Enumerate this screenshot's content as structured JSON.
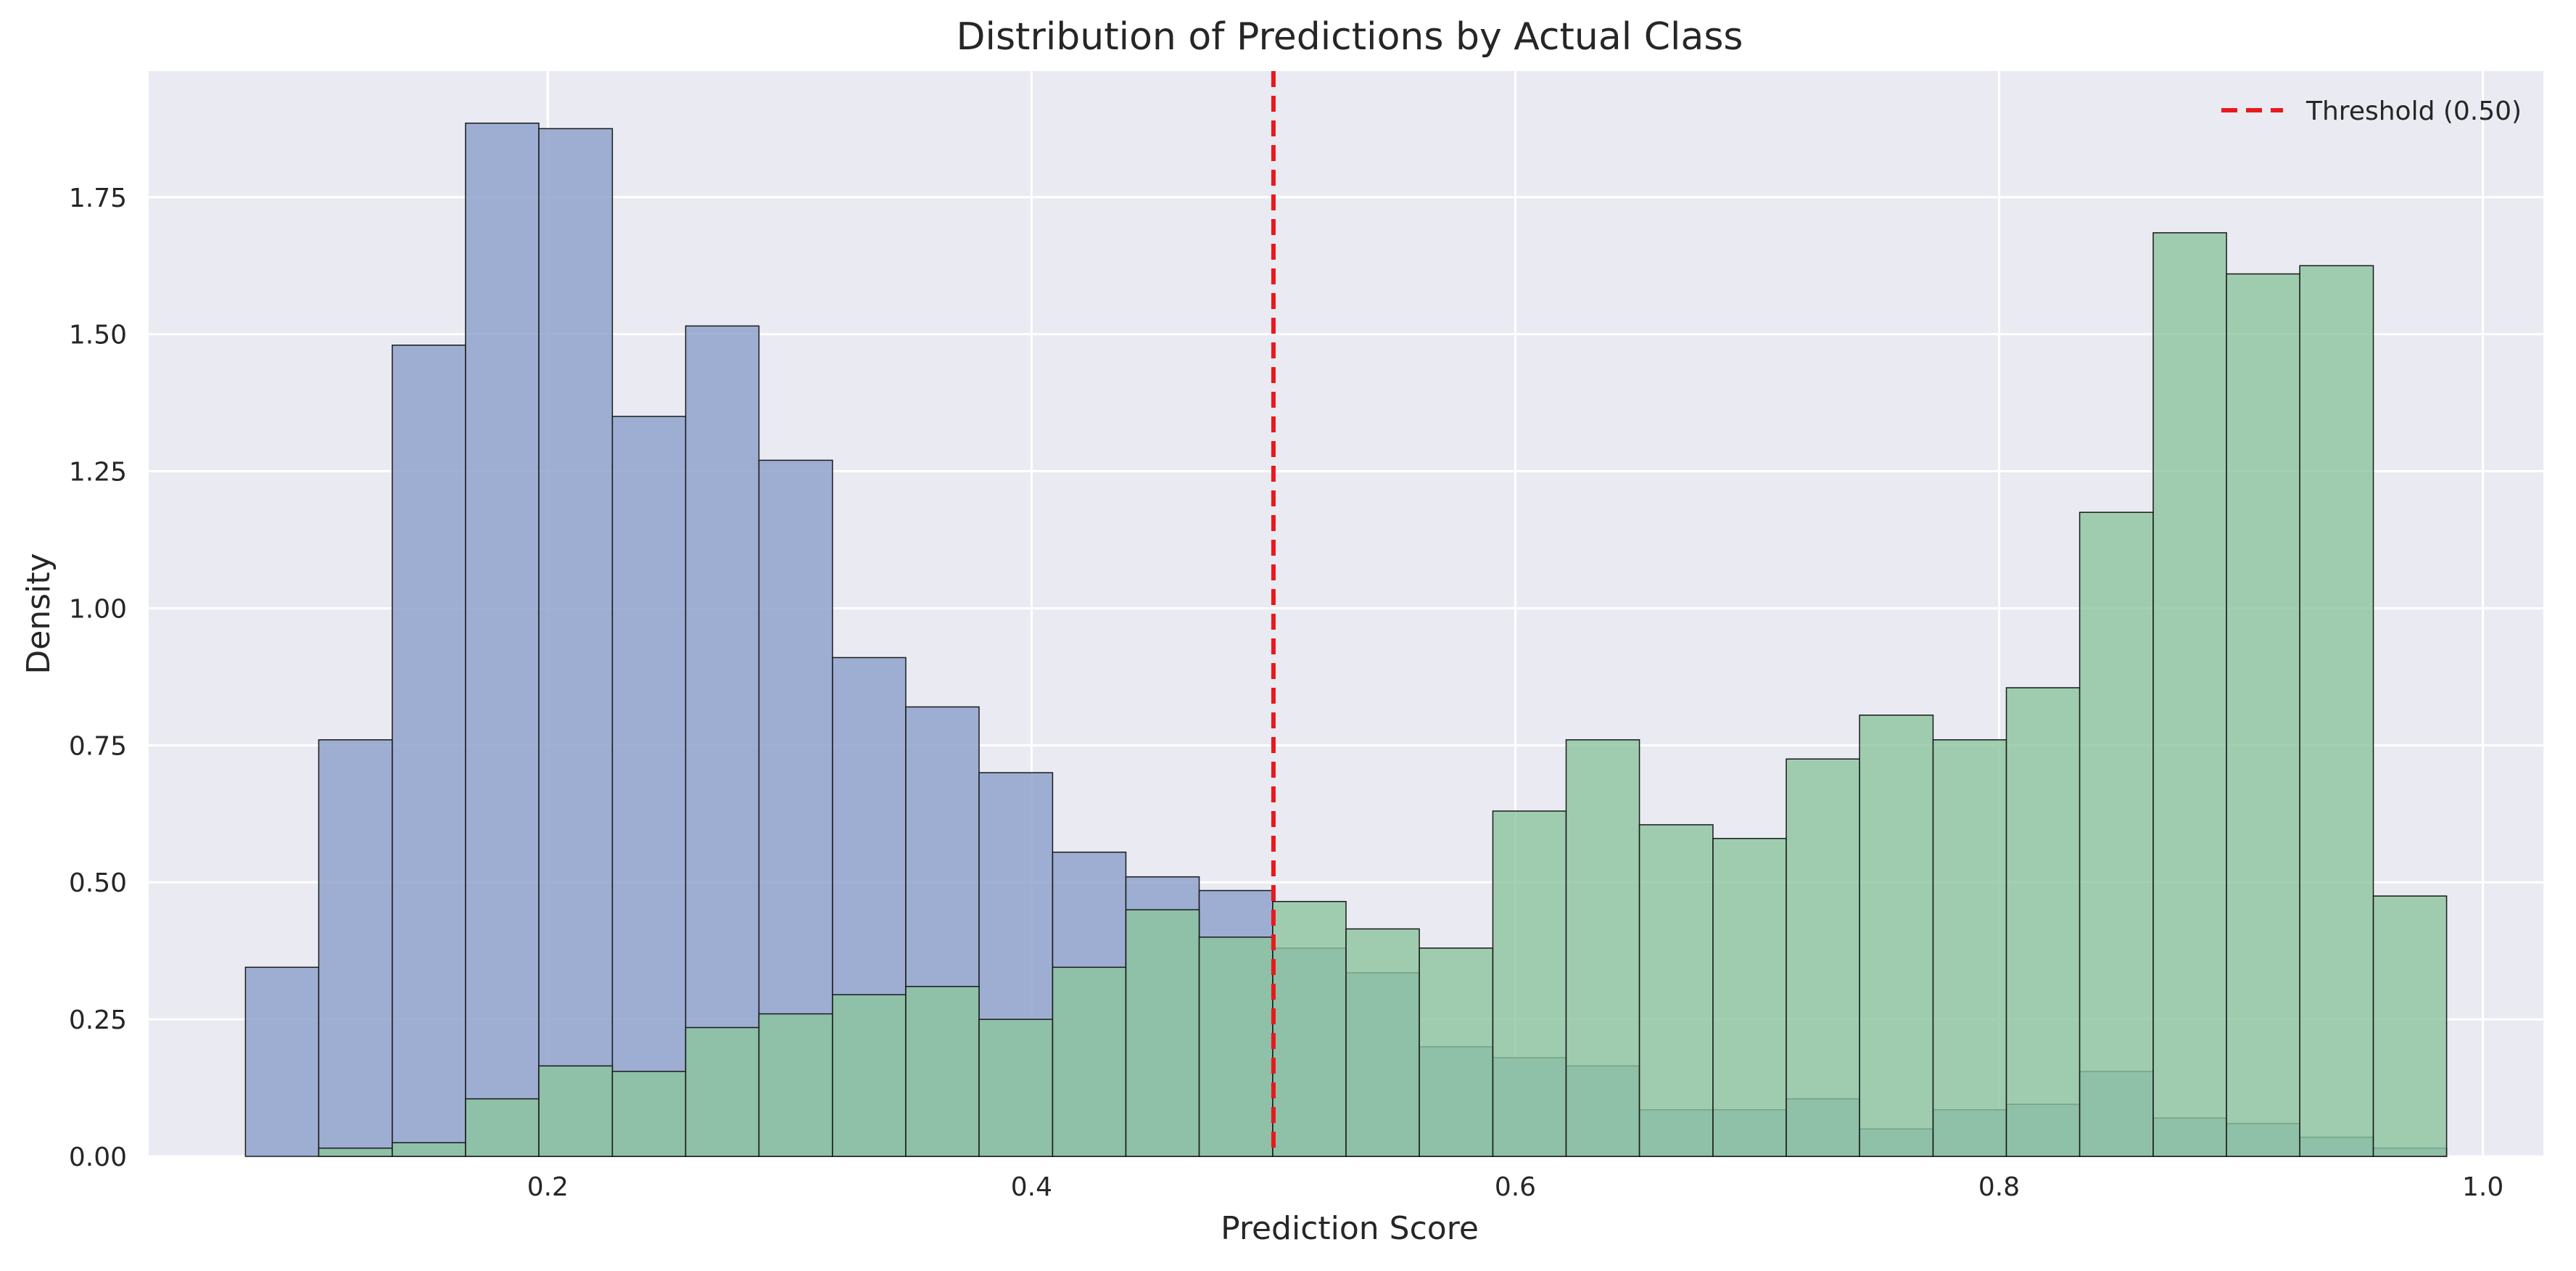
{
  "chart_data": {
    "type": "bar",
    "subtype": "overlapping-histogram",
    "title": "Distribution of Predictions by Actual Class",
    "xlabel": "Prediction Score",
    "ylabel": "Density",
    "xlim": [
      0.035,
      1.025
    ],
    "ylim": [
      0,
      1.98
    ],
    "xticks": [
      0.2,
      0.4,
      0.6,
      0.8,
      1.0
    ],
    "xtick_labels": [
      "0.2",
      "0.4",
      "0.6",
      "0.8",
      "1.0"
    ],
    "yticks": [
      0,
      0.25,
      0.5,
      0.75,
      1.0,
      1.25,
      1.5,
      1.75
    ],
    "ytick_labels": [
      "0.00",
      "0.25",
      "0.50",
      "0.75",
      "1.00",
      "1.25",
      "1.50",
      "1.75"
    ],
    "grid": true,
    "legend_position": "top-right",
    "bin_edges": [
      0.075,
      0.1053,
      0.1357,
      0.166,
      0.1963,
      0.2267,
      0.257,
      0.2873,
      0.3177,
      0.348,
      0.3783,
      0.4087,
      0.439,
      0.4693,
      0.4997,
      0.53,
      0.5603,
      0.5907,
      0.621,
      0.6513,
      0.6817,
      0.712,
      0.7423,
      0.7727,
      0.803,
      0.8333,
      0.8637,
      0.894,
      0.9243,
      0.9547,
      0.985
    ],
    "series": [
      {
        "color": "#8fa3cc",
        "alpha": 0.85,
        "values": [
          0.345,
          0.76,
          1.48,
          1.885,
          1.875,
          1.35,
          1.515,
          1.27,
          0.91,
          0.82,
          0.7,
          0.555,
          0.51,
          0.485,
          0.38,
          0.335,
          0.2,
          0.18,
          0.165,
          0.085,
          0.085,
          0.105,
          0.05,
          0.085,
          0.095,
          0.155,
          0.07,
          0.06,
          0.035,
          0.015
        ]
      },
      {
        "color": "#8cc49e",
        "alpha": 0.8,
        "values": [
          0.0,
          0.015,
          0.025,
          0.105,
          0.165,
          0.155,
          0.235,
          0.26,
          0.295,
          0.31,
          0.25,
          0.345,
          0.45,
          0.4,
          0.465,
          0.415,
          0.38,
          0.63,
          0.76,
          0.605,
          0.58,
          0.725,
          0.805,
          0.76,
          0.855,
          1.175,
          1.685,
          1.61,
          1.625,
          0.475
        ]
      }
    ],
    "threshold": {
      "value": 0.5,
      "label": "Threshold (0.50)",
      "color": "#e8191c"
    },
    "colors": {
      "background": "#eaeaf2",
      "grid": "#ffffff",
      "bar_edge": "#1a1a1a"
    }
  }
}
